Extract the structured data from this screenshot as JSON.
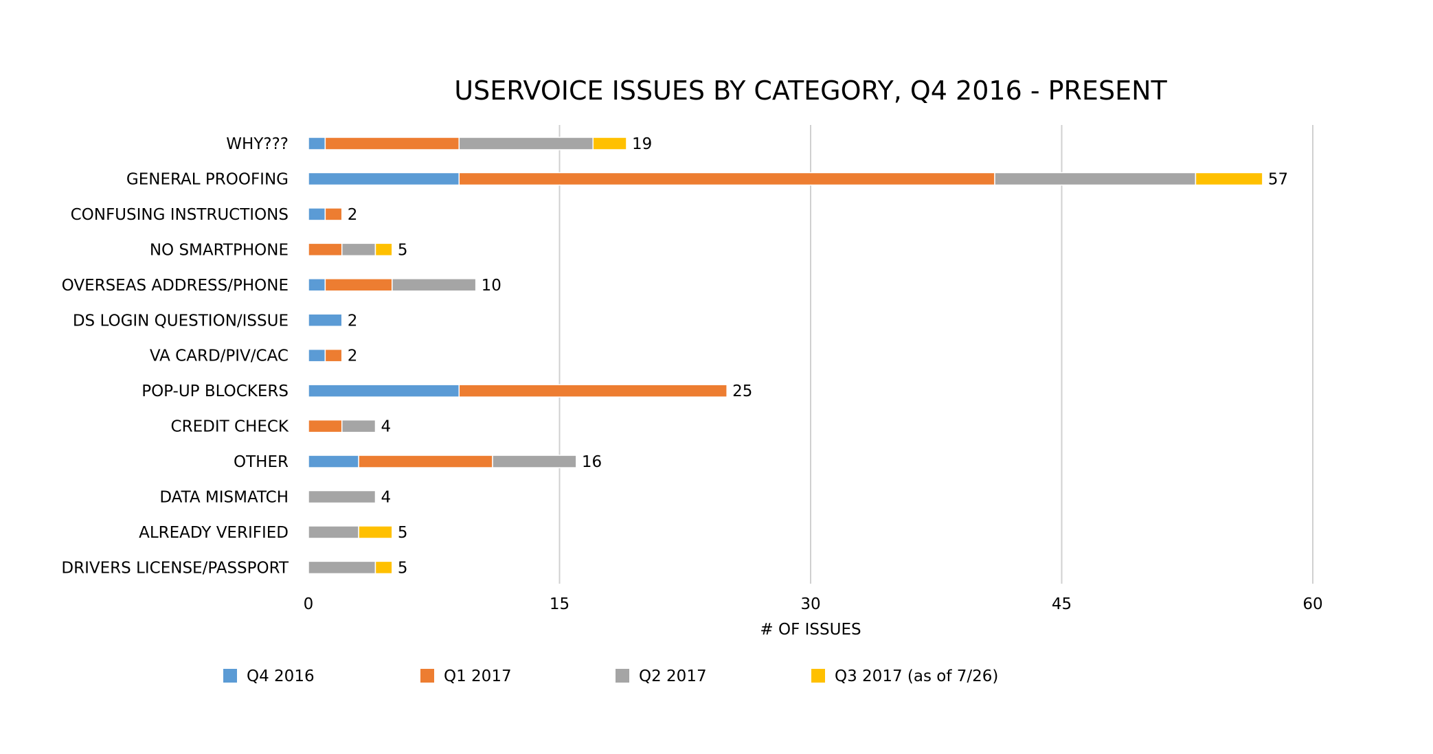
{
  "chart_data": {
    "type": "bar",
    "orientation": "horizontal",
    "stacked": true,
    "title": "USERVOICE ISSUES BY CATEGORY, Q4 2016 - PRESENT",
    "xlabel": "# OF ISSUES",
    "ylabel": "",
    "xlim": [
      0,
      60
    ],
    "xticks": [
      0,
      15,
      30,
      45,
      60
    ],
    "grid": "vertical",
    "legend_position": "bottom",
    "categories": [
      "WHY???",
      "GENERAL PROOFING",
      "CONFUSING INSTRUCTIONS",
      "NO SMARTPHONE",
      "OVERSEAS ADDRESS/PHONE",
      "DS LOGIN QUESTION/ISSUE",
      "VA CARD/PIV/CAC",
      "POP-UP BLOCKERS",
      "CREDIT CHECK",
      "OTHER",
      "DATA MISMATCH",
      "ALREADY VERIFIED",
      "DRIVERS LICENSE/PASSPORT"
    ],
    "series": [
      {
        "name": "Q4 2016",
        "color": "#5b9bd5",
        "values": [
          1,
          9,
          1,
          0,
          1,
          2,
          1,
          9,
          0,
          3,
          0,
          0,
          0
        ]
      },
      {
        "name": "Q1 2017",
        "color": "#ed7d31",
        "values": [
          8,
          32,
          1,
          2,
          4,
          0,
          1,
          16,
          2,
          8,
          0,
          0,
          0
        ]
      },
      {
        "name": "Q2 2017",
        "color": "#a5a5a5",
        "values": [
          8,
          12,
          0,
          2,
          5,
          0,
          0,
          0,
          2,
          5,
          4,
          3,
          4
        ]
      },
      {
        "name": "Q3 2017 (as of 7/26)",
        "color": "#ffc000",
        "values": [
          2,
          4,
          0,
          1,
          0,
          0,
          0,
          0,
          0,
          0,
          0,
          2,
          1
        ]
      }
    ],
    "totals": [
      19,
      57,
      2,
      5,
      10,
      2,
      2,
      25,
      4,
      16,
      4,
      5,
      5
    ]
  }
}
